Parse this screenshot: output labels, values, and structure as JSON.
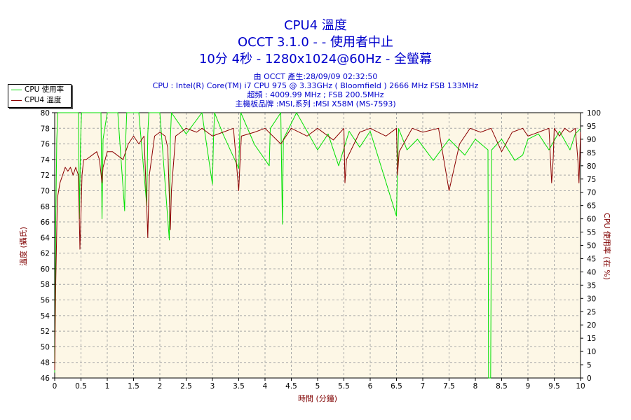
{
  "header": {
    "title_lines": [
      "CPU4 溫度",
      "OCCT 3.1.0 -  - 使用者中止",
      "10分 4秒 - 1280x1024@60Hz - 全螢幕"
    ],
    "info_lines": [
      "由 OCCT 產生:28/09/09 02:32:50",
      "CPU : Intel(R) Core(TM) i7 CPU 975 @ 3.33GHz ( Bloomfield ) 2666 MHz FSB 133MHz",
      "超頻 : 4009.99 MHz ; FSB 200.5MHz",
      "主機板品牌 :MSI,系列 :MSI X58M (MS-7593)"
    ]
  },
  "colors": {
    "title": "#0000cc",
    "axis_label": "#800000",
    "plot_bg": "#fdf7e6",
    "grid": "#a8a8a8",
    "cpu_usage": "#00e000",
    "cpu4_temp": "#8b0000"
  },
  "chart_data": {
    "type": "line",
    "xlabel": "時間 (分鐘)",
    "ylabel": "溫度 (攝氏)",
    "y2label": "CPU 使用率 (在 %)",
    "xlim": [
      0,
      10
    ],
    "ylim": [
      46,
      80
    ],
    "y2lim": [
      0,
      100
    ],
    "x_ticks": [
      0,
      0.5,
      1,
      1.5,
      2,
      2.5,
      3,
      3.5,
      4,
      4.5,
      5,
      5.5,
      6,
      6.5,
      7,
      7.5,
      8,
      8.5,
      9,
      9.5,
      10
    ],
    "x_tick_labels": [
      "0",
      "0.5",
      "1",
      "1.5",
      "2",
      "2.5",
      "3",
      "3.5",
      "4",
      "4.5",
      "5",
      "5.5",
      "6",
      "6.5",
      "7",
      "7.5",
      "8",
      "8.5",
      "9",
      "9.5",
      "10"
    ],
    "y_ticks": [
      46,
      48,
      50,
      52,
      54,
      56,
      58,
      60,
      62,
      64,
      66,
      68,
      70,
      72,
      74,
      76,
      78,
      80
    ],
    "y2_ticks": [
      0,
      5,
      10,
      15,
      20,
      25,
      30,
      35,
      40,
      45,
      50,
      55,
      60,
      65,
      70,
      75,
      80,
      85,
      90,
      95,
      100
    ],
    "grid": true,
    "legend_position": "top-left",
    "series": [
      {
        "name": "CPU 使用率",
        "axis": "right",
        "color": "#00e000",
        "x": [
          0,
          0.02,
          0.04,
          0.06,
          0.08,
          0.45,
          0.47,
          0.49,
          0.51,
          0.88,
          0.9,
          0.92,
          1.0,
          1.2,
          1.33,
          1.35,
          1.37,
          1.6,
          1.75,
          1.77,
          1.79,
          2.0,
          2.18,
          2.2,
          2.22,
          2.5,
          2.8,
          3.0,
          3.02,
          3.04,
          3.2,
          3.5,
          3.52,
          3.54,
          3.8,
          4.08,
          4.1,
          4.3,
          4.33,
          4.35,
          4.6,
          5.0,
          5.2,
          5.4,
          5.6,
          5.8,
          6.0,
          6.5,
          6.52,
          6.54,
          6.7,
          6.9,
          7.2,
          7.5,
          7.8,
          8.0,
          8.24,
          8.25,
          8.27,
          8.29,
          8.31,
          8.5,
          8.75,
          8.9,
          9.0,
          9.2,
          9.4,
          9.6,
          9.8,
          9.9,
          10.0
        ],
        "values": [
          2,
          60,
          90,
          100,
          100,
          100,
          60,
          88,
          100,
          100,
          60,
          90,
          100,
          100,
          63,
          90,
          100,
          100,
          65,
          92,
          100,
          100,
          52,
          90,
          100,
          92,
          100,
          73,
          90,
          100,
          92,
          79,
          92,
          100,
          88,
          80,
          94,
          100,
          58,
          90,
          100,
          86,
          92,
          80,
          93,
          87,
          93,
          61,
          80,
          94,
          86,
          90,
          82,
          90,
          84,
          90,
          86,
          0,
          0,
          0,
          86,
          90,
          82,
          84,
          90,
          92,
          86,
          93,
          86,
          92,
          94
        ]
      },
      {
        "name": "CPU4 溫度",
        "axis": "left",
        "color": "#8b0000",
        "x": [
          0,
          0.02,
          0.05,
          0.1,
          0.15,
          0.2,
          0.25,
          0.3,
          0.35,
          0.4,
          0.45,
          0.48,
          0.5,
          0.52,
          0.55,
          0.6,
          0.7,
          0.8,
          0.85,
          0.9,
          0.92,
          1.0,
          1.1,
          1.2,
          1.3,
          1.4,
          1.5,
          1.6,
          1.7,
          1.75,
          1.77,
          1.8,
          1.9,
          2.0,
          2.1,
          2.15,
          2.2,
          2.22,
          2.3,
          2.5,
          2.7,
          2.8,
          3.0,
          3.2,
          3.4,
          3.5,
          3.52,
          3.55,
          3.8,
          4.0,
          4.3,
          4.5,
          4.8,
          5.0,
          5.3,
          5.5,
          5.52,
          5.55,
          5.8,
          6.0,
          6.3,
          6.5,
          6.52,
          6.55,
          6.8,
          7.0,
          7.3,
          7.5,
          7.7,
          7.9,
          8.1,
          8.3,
          8.5,
          8.7,
          8.9,
          9.0,
          9.2,
          9.4,
          9.45,
          9.48,
          9.5,
          9.6,
          9.7,
          9.8,
          9.9,
          9.95,
          9.97,
          10.0
        ],
        "values": [
          47,
          58,
          69,
          71,
          72,
          73,
          72.5,
          73,
          72,
          73,
          72,
          62.5,
          67,
          72,
          74,
          74,
          74.5,
          75,
          74,
          71,
          73,
          75,
          75,
          74.5,
          74,
          76,
          77,
          76,
          77,
          68,
          64,
          72,
          77,
          77.5,
          77,
          75.5,
          65,
          70,
          77,
          78,
          77.5,
          78,
          77,
          77.5,
          78,
          70,
          73,
          77,
          77.5,
          78,
          76,
          78,
          77,
          78,
          76.5,
          78,
          71,
          74,
          77.5,
          78,
          77,
          78,
          72,
          75,
          78,
          77.5,
          78,
          70,
          76,
          78,
          77.5,
          78,
          75,
          77.5,
          78,
          77,
          77.5,
          78,
          71,
          74,
          78,
          77,
          78,
          77.5,
          78,
          74,
          71,
          77.5
        ]
      }
    ]
  }
}
